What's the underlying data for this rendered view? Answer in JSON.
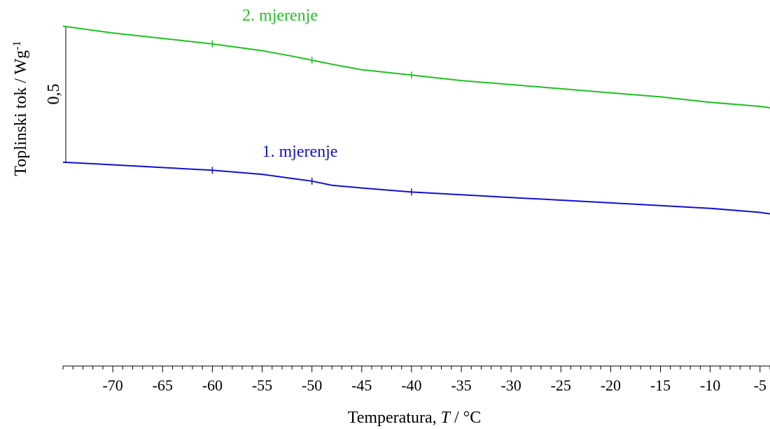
{
  "chart_data": {
    "type": "line",
    "xlabel_prefix": "Temperatura, ",
    "xlabel_var": "T",
    "xlabel_suffix": " / °C",
    "ylabel": "Toplinski tok / Wg",
    "ylabel_sup": "-1",
    "scale_bar_value": "0,5",
    "scale_bar_label": "0,5",
    "xlim": [
      -75,
      -4
    ],
    "ylim": [
      -0.25,
      1.05
    ],
    "x_ticks": [
      -70,
      -65,
      -60,
      -55,
      -50,
      -45,
      -40,
      -35,
      -30,
      -25,
      -20,
      -15,
      -10,
      -5
    ],
    "x_tick_labels": [
      "-70",
      "-65",
      "-60",
      "-55",
      "-50",
      "-45",
      "-40",
      "-35",
      "-30",
      "-25",
      "-20",
      "-15",
      "-10",
      "-5"
    ],
    "series": [
      {
        "name": "2. mjerenje",
        "color": "#1fc21f",
        "x": [
          -75,
          -70,
          -65,
          -60,
          -55,
          -52,
          -50,
          -48,
          -45,
          -40,
          -35,
          -30,
          -25,
          -20,
          -15,
          -10,
          -5,
          -4
        ],
        "y": [
          1.0,
          0.975,
          0.955,
          0.935,
          0.91,
          0.89,
          0.875,
          0.86,
          0.84,
          0.82,
          0.8,
          0.785,
          0.77,
          0.755,
          0.74,
          0.72,
          0.705,
          0.7
        ]
      },
      {
        "name": "1. mjerenje",
        "color": "#1010d8",
        "x": [
          -75,
          -70,
          -65,
          -60,
          -55,
          -52,
          -50,
          -48,
          -45,
          -40,
          -35,
          -30,
          -25,
          -20,
          -15,
          -10,
          -5,
          -4
        ],
        "y": [
          0.5,
          0.49,
          0.48,
          0.47,
          0.455,
          0.44,
          0.43,
          0.415,
          0.405,
          0.39,
          0.38,
          0.37,
          0.36,
          0.35,
          0.34,
          0.33,
          0.315,
          0.31
        ]
      }
    ],
    "grid": false
  }
}
